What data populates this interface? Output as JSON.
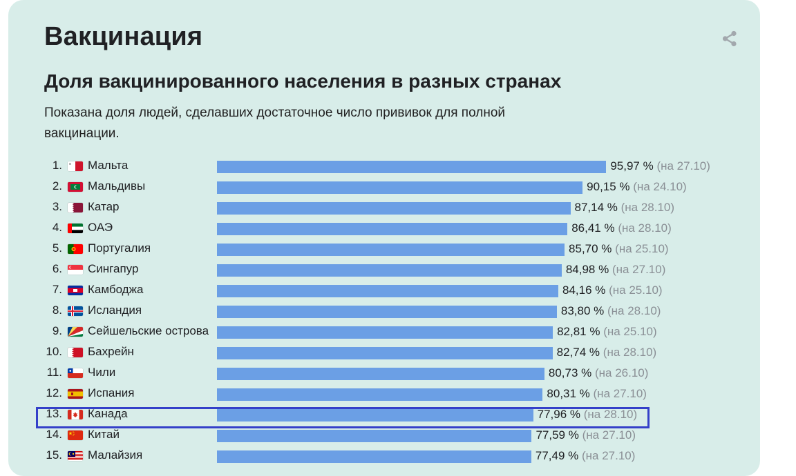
{
  "title": "Вакцинация",
  "icons": {
    "share": "share-icon"
  },
  "chart_data": {
    "type": "bar",
    "orientation": "horizontal",
    "title": "Доля вакцинированного населения в разных странах",
    "description": "Показана доля людей, сделавших достаточное число прививок для полной вакцинации.",
    "unit": "%",
    "bar_color": "#6b9fe5",
    "highlight_color": "#3440c9",
    "highlighted_rank": "13.",
    "rows": [
      {
        "rank": "1.",
        "country": "Мальта",
        "flag": "malta",
        "value": 95.97,
        "value_label": "95,97 %",
        "date_label": "(на 27.10)"
      },
      {
        "rank": "2.",
        "country": "Мальдивы",
        "flag": "maldives",
        "value": 90.15,
        "value_label": "90,15 %",
        "date_label": "(на 24.10)"
      },
      {
        "rank": "3.",
        "country": "Катар",
        "flag": "qatar",
        "value": 87.14,
        "value_label": "87,14 %",
        "date_label": "(на 28.10)"
      },
      {
        "rank": "4.",
        "country": "ОАЭ",
        "flag": "uae",
        "value": 86.41,
        "value_label": "86,41 %",
        "date_label": "(на 28.10)"
      },
      {
        "rank": "5.",
        "country": "Португалия",
        "flag": "portugal",
        "value": 85.7,
        "value_label": "85,70 %",
        "date_label": "(на 25.10)"
      },
      {
        "rank": "6.",
        "country": "Сингапур",
        "flag": "singapore",
        "value": 84.98,
        "value_label": "84,98 %",
        "date_label": "(на 27.10)"
      },
      {
        "rank": "7.",
        "country": "Камбоджа",
        "flag": "cambodia",
        "value": 84.16,
        "value_label": "84,16 %",
        "date_label": "(на 25.10)"
      },
      {
        "rank": "8.",
        "country": "Исландия",
        "flag": "iceland",
        "value": 83.8,
        "value_label": "83,80 %",
        "date_label": "(на 28.10)"
      },
      {
        "rank": "9.",
        "country": "Сейшельские острова",
        "flag": "seychelles",
        "value": 82.81,
        "value_label": "82,81 %",
        "date_label": "(на 25.10)"
      },
      {
        "rank": "10.",
        "country": "Бахрейн",
        "flag": "bahrain",
        "value": 82.74,
        "value_label": "82,74 %",
        "date_label": "(на 28.10)"
      },
      {
        "rank": "11.",
        "country": "Чили",
        "flag": "chile",
        "value": 80.73,
        "value_label": "80,73 %",
        "date_label": "(на 26.10)"
      },
      {
        "rank": "12.",
        "country": "Испания",
        "flag": "spain",
        "value": 80.31,
        "value_label": "80,31 %",
        "date_label": "(на 27.10)"
      },
      {
        "rank": "13.",
        "country": "Канада",
        "flag": "canada",
        "value": 77.96,
        "value_label": "77,96 %",
        "date_label": "(на 28.10)"
      },
      {
        "rank": "14.",
        "country": "Китай",
        "flag": "china",
        "value": 77.59,
        "value_label": "77,59 %",
        "date_label": "(на 27.10)"
      },
      {
        "rank": "15.",
        "country": "Малайзия",
        "flag": "malaysia",
        "value": 77.49,
        "value_label": "77,49 %",
        "date_label": "(на 27.10)"
      }
    ]
  }
}
